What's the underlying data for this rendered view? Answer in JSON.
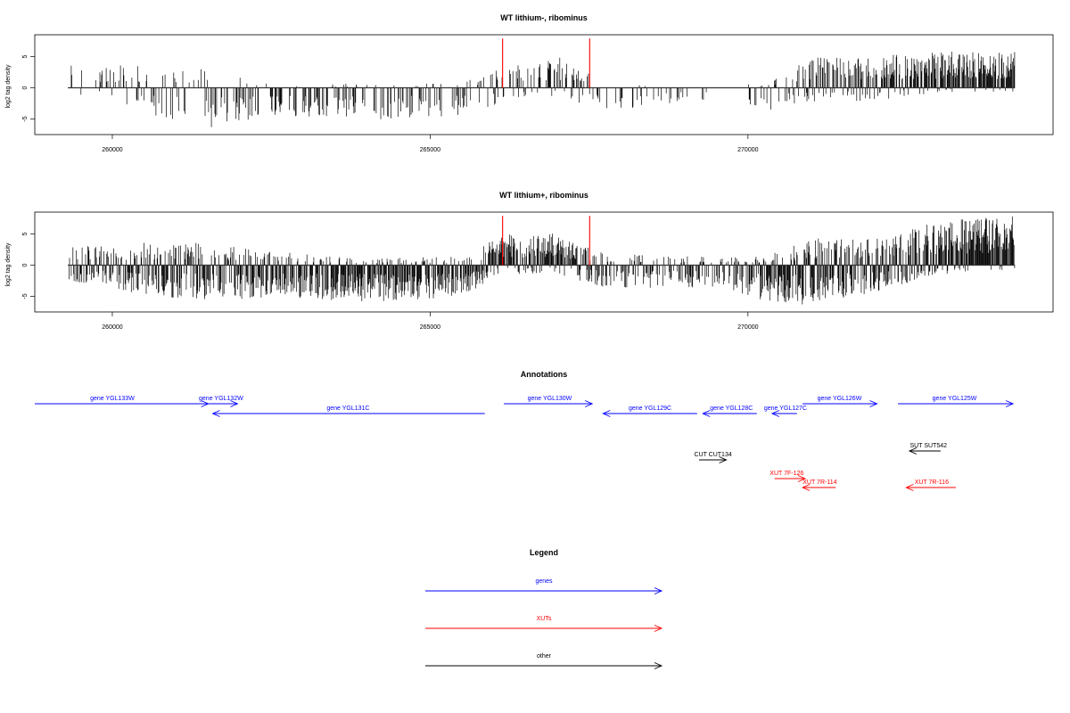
{
  "colors": {
    "gene": "#0000ff",
    "xut": "#ff0000",
    "other": "#000000",
    "density": "#000000",
    "marker": "#ff0000"
  },
  "chart_data": [
    {
      "type": "bar",
      "title": "WT lithium-, ribominus",
      "ylabel": "log2 tag density",
      "xlim": [
        258780,
        274800
      ],
      "ylim": [
        -7.5,
        8.5
      ],
      "x_ticks": [
        260000,
        265000,
        270000
      ],
      "x_tick_labels": [
        "260000",
        "265000",
        "270000"
      ],
      "y_ticks": [
        -5,
        0,
        5
      ],
      "y_tick_labels": [
        "-5",
        "0",
        "5"
      ],
      "x_range": [
        259300,
        274200
      ],
      "markers": [
        {
          "x": 266140,
          "y": 7.9
        },
        {
          "x": 267510,
          "y": 7.9
        }
      ],
      "density_profile": [
        {
          "x": 259300,
          "pos": 2.5,
          "neg": 0.5,
          "density": 0.15
        },
        {
          "x": 260600,
          "pos": 2.5,
          "neg": 3.0,
          "density": 0.35
        },
        {
          "x": 261600,
          "pos": 2.0,
          "neg": 4.5,
          "density": 0.35
        },
        {
          "x": 262500,
          "pos": 0.5,
          "neg": 3.0,
          "density": 0.3
        },
        {
          "x": 263500,
          "pos": 0.5,
          "neg": 3.5,
          "density": 0.4
        },
        {
          "x": 264500,
          "pos": 0.5,
          "neg": 3.5,
          "density": 0.4
        },
        {
          "x": 265500,
          "pos": 0.5,
          "neg": 3.0,
          "density": 0.35
        },
        {
          "x": 266200,
          "pos": 2.5,
          "neg": 1.5,
          "density": 0.3
        },
        {
          "x": 267000,
          "pos": 3.5,
          "neg": 1.0,
          "density": 0.4
        },
        {
          "x": 267700,
          "pos": 1.0,
          "neg": 2.5,
          "density": 0.3
        },
        {
          "x": 268600,
          "pos": 0.5,
          "neg": 2.5,
          "density": 0.2
        },
        {
          "x": 269600,
          "pos": 0.3,
          "neg": 1.0,
          "density": 0.05
        },
        {
          "x": 270300,
          "pos": 0.5,
          "neg": 2.5,
          "density": 0.15
        },
        {
          "x": 271000,
          "pos": 3.5,
          "neg": 1.5,
          "density": 0.6
        },
        {
          "x": 272000,
          "pos": 3.5,
          "neg": 1.5,
          "density": 0.6
        },
        {
          "x": 273000,
          "pos": 4.0,
          "neg": 0.5,
          "density": 0.8
        },
        {
          "x": 274200,
          "pos": 4.0,
          "neg": 0.5,
          "density": 0.8
        }
      ]
    },
    {
      "type": "bar",
      "title": "WT lithium+, ribominus",
      "ylabel": "log2 tag density",
      "xlim": [
        258780,
        274800
      ],
      "ylim": [
        -7.5,
        8.5
      ],
      "x_ticks": [
        260000,
        265000,
        270000
      ],
      "x_tick_labels": [
        "260000",
        "265000",
        "270000"
      ],
      "y_ticks": [
        -5,
        0,
        5
      ],
      "y_tick_labels": [
        "-5",
        "0",
        "5"
      ],
      "x_range": [
        259300,
        274200
      ],
      "markers": [
        {
          "x": 266140,
          "y": 7.9
        },
        {
          "x": 267510,
          "y": 7.9
        }
      ],
      "density_profile": [
        {
          "x": 259300,
          "pos": 2.0,
          "neg": 2.0,
          "density": 0.6
        },
        {
          "x": 260600,
          "pos": 2.5,
          "neg": 3.5,
          "density": 0.8
        },
        {
          "x": 261600,
          "pos": 2.5,
          "neg": 4.0,
          "density": 0.8
        },
        {
          "x": 262500,
          "pos": 1.5,
          "neg": 3.5,
          "density": 0.8
        },
        {
          "x": 263500,
          "pos": 1.0,
          "neg": 4.0,
          "density": 0.85
        },
        {
          "x": 264500,
          "pos": 0.8,
          "neg": 4.0,
          "density": 0.85
        },
        {
          "x": 265500,
          "pos": 1.0,
          "neg": 3.5,
          "density": 0.8
        },
        {
          "x": 266200,
          "pos": 3.5,
          "neg": 1.0,
          "density": 0.9
        },
        {
          "x": 267000,
          "pos": 3.5,
          "neg": 1.0,
          "density": 0.9
        },
        {
          "x": 267700,
          "pos": 1.5,
          "neg": 2.5,
          "density": 0.6
        },
        {
          "x": 268600,
          "pos": 1.0,
          "neg": 2.5,
          "density": 0.55
        },
        {
          "x": 269600,
          "pos": 1.0,
          "neg": 2.5,
          "density": 0.5
        },
        {
          "x": 270300,
          "pos": 1.0,
          "neg": 4.0,
          "density": 0.9
        },
        {
          "x": 271000,
          "pos": 3.0,
          "neg": 4.5,
          "density": 0.95
        },
        {
          "x": 272000,
          "pos": 3.0,
          "neg": 3.0,
          "density": 0.9
        },
        {
          "x": 273000,
          "pos": 5.0,
          "neg": 1.0,
          "density": 0.95
        },
        {
          "x": 274200,
          "pos": 5.5,
          "neg": 0.5,
          "density": 0.95
        }
      ]
    }
  ],
  "annotations": {
    "title": "Annotations",
    "features": [
      {
        "label": "gene YGL133W",
        "class": "gene",
        "start": 258780,
        "end": 261510,
        "strand": "+",
        "row": 0,
        "label_x": 260000
      },
      {
        "label": "gene YGL132W",
        "class": "gene",
        "start": 261420,
        "end": 261970,
        "strand": "+",
        "row": 0,
        "label_x": 261710
      },
      {
        "label": "gene YGL131C",
        "class": "gene",
        "start": 261580,
        "end": 265860,
        "strand": "-",
        "row": 1,
        "label_x": 263710
      },
      {
        "label": "gene YGL130W",
        "class": "gene",
        "start": 266160,
        "end": 267550,
        "strand": "+",
        "row": 0,
        "label_x": 266880
      },
      {
        "label": "gene YGL129C",
        "class": "gene",
        "start": 267720,
        "end": 269200,
        "strand": "-",
        "row": 1,
        "label_x": 268460
      },
      {
        "label": "gene YGL128C",
        "class": "gene",
        "start": 269290,
        "end": 270140,
        "strand": "-",
        "row": 1,
        "label_x": 269740
      },
      {
        "label": "gene YGL127C",
        "class": "gene",
        "start": 270380,
        "end": 270770,
        "strand": "-",
        "row": 1,
        "label_x": 270590
      },
      {
        "label": "gene YGL126W",
        "class": "gene",
        "start": 270860,
        "end": 272030,
        "strand": "+",
        "row": 0,
        "label_x": 271440
      },
      {
        "label": "gene YGL125W",
        "class": "gene",
        "start": 272360,
        "end": 274170,
        "strand": "+",
        "row": 0,
        "label_x": 273250
      },
      {
        "label": "SUT SUT542",
        "class": "other",
        "start": 272540,
        "end": 273030,
        "strand": "-",
        "row": 3,
        "label_x": 272840
      },
      {
        "label": "CUT CUT134",
        "class": "other",
        "start": 269230,
        "end": 269660,
        "strand": "+",
        "row": 4,
        "label_x": 269450
      },
      {
        "label": "XUT 7F-126",
        "class": "xut",
        "start": 270420,
        "end": 270900,
        "strand": "+",
        "row": 5,
        "label_x": 270610
      },
      {
        "label": "XUT 7R-114",
        "class": "xut",
        "start": 270860,
        "end": 271380,
        "strand": "-",
        "row": 6,
        "label_x": 271130
      },
      {
        "label": "XUT 7R-116",
        "class": "xut",
        "start": 272490,
        "end": 273270,
        "strand": "-",
        "row": 6,
        "label_x": 272890
      }
    ]
  },
  "legend": {
    "title": "Legend",
    "items": [
      {
        "label": "genes",
        "class": "gene"
      },
      {
        "label": "XUTs",
        "class": "xut"
      },
      {
        "label": "other",
        "class": "other"
      }
    ]
  }
}
